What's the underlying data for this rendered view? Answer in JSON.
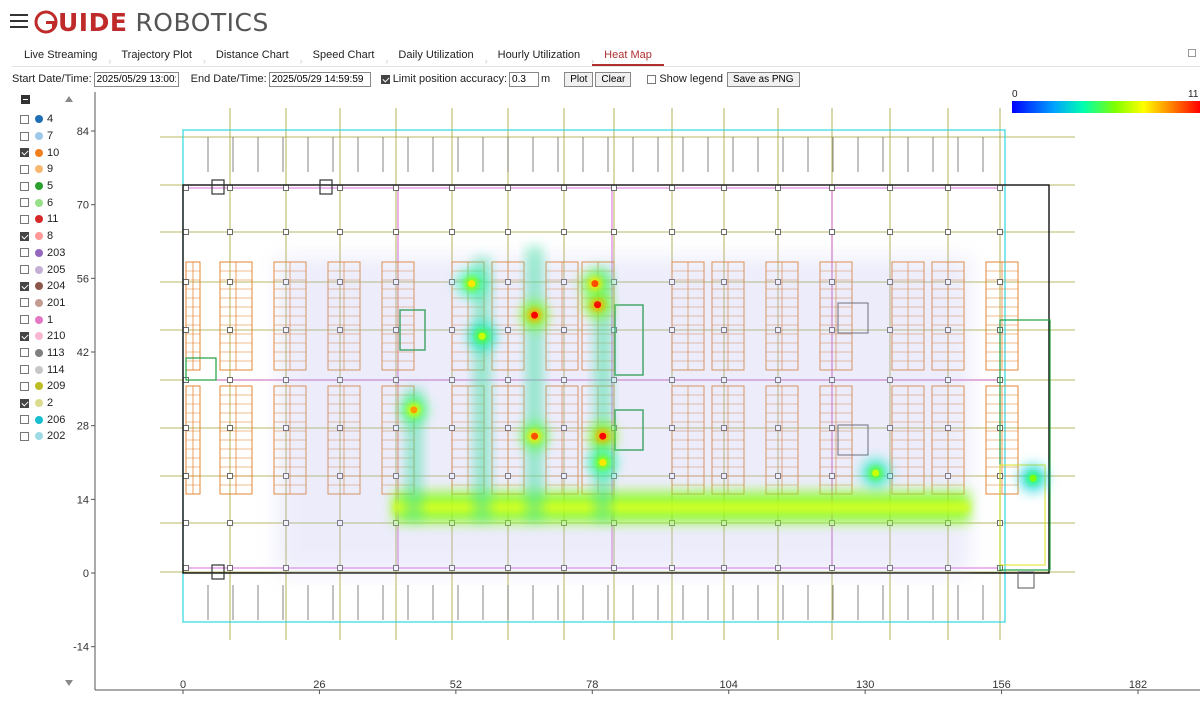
{
  "header": {
    "brand_mark": "G",
    "brand_part1": "UIDE",
    "brand_part2": "ROBOTICS"
  },
  "tabs": [
    {
      "label": "Live Streaming"
    },
    {
      "label": "Trajectory Plot"
    },
    {
      "label": "Distance Chart"
    },
    {
      "label": "Speed Chart"
    },
    {
      "label": "Daily Utilization"
    },
    {
      "label": "Hourly Utilization"
    },
    {
      "label": "Heat Map",
      "active": true
    }
  ],
  "controls": {
    "start_label": "Start Date/Time:",
    "start_value": "2025/05/29 13:00:00",
    "end_label": "End Date/Time:",
    "end_value": "2025/05/29 14:59:59",
    "limit_label": "Limit position accuracy:",
    "limit_checked": true,
    "limit_value": "0.3",
    "limit_unit": "m",
    "plot_button": "Plot",
    "clear_button": "Clear",
    "legend_label": "Show legend",
    "legend_checked": false,
    "save_button": "Save as PNG"
  },
  "robots": [
    {
      "id": "4",
      "color": "#1f6fb4",
      "checked": false
    },
    {
      "id": "7",
      "color": "#9ec8e8",
      "checked": false
    },
    {
      "id": "10",
      "color": "#f07f1e",
      "checked": true
    },
    {
      "id": "9",
      "color": "#f8b870",
      "checked": false
    },
    {
      "id": "5",
      "color": "#2ca02c",
      "checked": false
    },
    {
      "id": "6",
      "color": "#98df8a",
      "checked": false
    },
    {
      "id": "11",
      "color": "#d62728",
      "checked": false
    },
    {
      "id": "8",
      "color": "#ff9896",
      "checked": true
    },
    {
      "id": "203",
      "color": "#9467bd",
      "checked": false
    },
    {
      "id": "205",
      "color": "#c5b0d5",
      "checked": false
    },
    {
      "id": "204",
      "color": "#8c564b",
      "checked": true
    },
    {
      "id": "201",
      "color": "#c49c94",
      "checked": false
    },
    {
      "id": "1",
      "color": "#e377c2",
      "checked": false
    },
    {
      "id": "210",
      "color": "#f7b6d2",
      "checked": true
    },
    {
      "id": "113",
      "color": "#7f7f7f",
      "checked": false
    },
    {
      "id": "114",
      "color": "#c7c7c7",
      "checked": false
    },
    {
      "id": "209",
      "color": "#bcbd22",
      "checked": false
    },
    {
      "id": "2",
      "color": "#dbdb8d",
      "checked": true
    },
    {
      "id": "206",
      "color": "#17becf",
      "checked": false
    },
    {
      "id": "202",
      "color": "#9edae5",
      "checked": false
    }
  ],
  "colorbar": {
    "min": "0",
    "max": "11"
  },
  "chart_data": {
    "type": "heatmap",
    "x_ticks": [
      0,
      26,
      52,
      78,
      104,
      130,
      156,
      182
    ],
    "y_ticks": [
      84,
      70,
      56,
      42,
      28,
      14,
      0,
      -14
    ],
    "xlim": [
      -16,
      188
    ],
    "ylim": [
      -21,
      92
    ],
    "value_range": [
      0,
      11
    ],
    "hotspots": [
      {
        "x": 44,
        "y": 31,
        "value": 9
      },
      {
        "x": 67,
        "y": 49,
        "value": 11
      },
      {
        "x": 67,
        "y": 26,
        "value": 10
      },
      {
        "x": 79,
        "y": 51,
        "value": 11
      },
      {
        "x": 78.5,
        "y": 55,
        "value": 10
      },
      {
        "x": 80,
        "y": 26,
        "value": 11
      },
      {
        "x": 80,
        "y": 21,
        "value": 8
      },
      {
        "x": 55,
        "y": 55,
        "value": 8
      },
      {
        "x": 57,
        "y": 45,
        "value": 7
      },
      {
        "x": 132,
        "y": 19,
        "value": 7
      },
      {
        "x": 162,
        "y": 18,
        "value": 6
      }
    ],
    "corridor_band": {
      "x_range": [
        40,
        150
      ],
      "y": 12.5,
      "value": 6
    }
  }
}
